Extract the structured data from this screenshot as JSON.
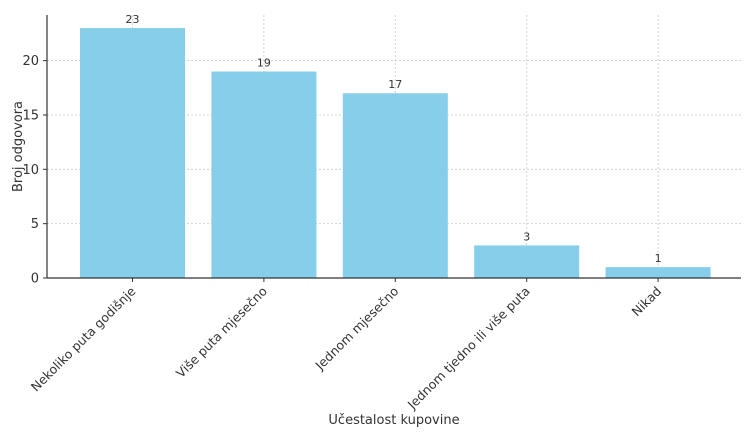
{
  "chart_data": {
    "type": "bar",
    "title": "",
    "xlabel": "Učestalost kupovine",
    "ylabel": "Broj odgovora",
    "categories": [
      "Nekoliko puta godišnje",
      "Više puta mjesečno",
      "Jednom mjesečno",
      "Jednom tjedno ili više puta",
      "Nikad"
    ],
    "values": [
      23,
      19,
      17,
      3,
      1
    ],
    "data_labels": [
      "23",
      "19",
      "17",
      "3",
      "1"
    ],
    "ylim": [
      0,
      24.2
    ],
    "yticks": [
      0,
      5,
      10,
      15,
      20
    ],
    "ytick_labels": [
      "0",
      "5",
      "10",
      "15",
      "20"
    ],
    "bar_color": "#87CEEB",
    "grid": true,
    "grid_style": "dotted",
    "legend": "none",
    "x_tick_rotation": "45 degrees"
  }
}
